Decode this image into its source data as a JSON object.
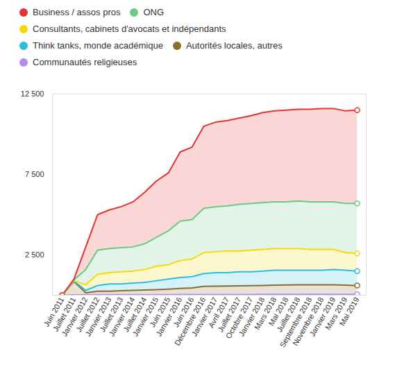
{
  "chart_data": {
    "type": "area",
    "stacked": true,
    "legend": "top-left",
    "grid": false,
    "categories": [
      "Juin 2011",
      "Juillet 2011",
      "Janvier 2012",
      "Juillet 2012",
      "Janvier 2013",
      "Juillet 2013",
      "Janvier 2014",
      "Juillet 2014",
      "Janvier 2015",
      "Juin 2015",
      "Janvier 2016",
      "Juin 2016",
      "Décembre 2016",
      "Janvier 2017",
      "Avril 2017",
      "Juillet 2017",
      "Octobre 2017",
      "Janvier 2018",
      "Mars 2018",
      "Mai 2018",
      "Juillet 2018",
      "Septembre 2018",
      "Novembre 2018",
      "Janvier 2019",
      "Mars 2019",
      "Mai 2019"
    ],
    "ylim": [
      0,
      12500
    ],
    "yticks": [
      {
        "value": 2500,
        "label": "2 500"
      },
      {
        "value": 7500,
        "label": "7 500"
      },
      {
        "value": 12500,
        "label": "12 500"
      }
    ],
    "series": [
      {
        "name": "Communautés religieuses",
        "color": "#b38cf0",
        "values": [
          0,
          20,
          30,
          30,
          30,
          30,
          30,
          30,
          30,
          30,
          40,
          40,
          40,
          40,
          40,
          40,
          40,
          50,
          50,
          50,
          50,
          50,
          50,
          50,
          50,
          50
        ]
      },
      {
        "name": "Autorités locales, autres",
        "color": "#8b6b2e",
        "values": [
          0,
          830,
          120,
          220,
          220,
          250,
          270,
          290,
          320,
          350,
          380,
          410,
          510,
          520,
          530,
          540,
          550,
          550,
          570,
          590,
          600,
          600,
          600,
          600,
          570,
          550
        ]
      },
      {
        "name": "Think tanks, monde académique",
        "color": "#2bbde0",
        "values": [
          0,
          20,
          150,
          350,
          450,
          420,
          450,
          480,
          550,
          620,
          680,
          700,
          800,
          840,
          830,
          870,
          860,
          900,
          930,
          910,
          900,
          900,
          900,
          950,
          930,
          900
        ]
      },
      {
        "name": "Consultants, cabinets d'avocats et indépendants",
        "color": "#f5d90a",
        "values": [
          0,
          30,
          350,
          700,
          700,
          750,
          750,
          800,
          900,
          900,
          1050,
          1100,
          1300,
          1300,
          1350,
          1300,
          1350,
          1350,
          1350,
          1350,
          1350,
          1300,
          1300,
          1250,
          1100,
          1100
        ]
      },
      {
        "name": "ONG",
        "color": "#6cc885",
        "values": [
          0,
          50,
          950,
          1500,
          1500,
          1500,
          1500,
          1600,
          1800,
          2100,
          2450,
          2450,
          2750,
          2800,
          2800,
          2900,
          2900,
          2900,
          2900,
          2900,
          2950,
          2950,
          2950,
          2950,
          3050,
          3100
        ]
      },
      {
        "name": "Business / assos pros",
        "color": "#e63232",
        "values": [
          0,
          50,
          1400,
          2200,
          2400,
          2550,
          2800,
          3200,
          3500,
          3600,
          4300,
          4500,
          5100,
          5250,
          5300,
          5350,
          5450,
          5600,
          5650,
          5700,
          5700,
          5750,
          5800,
          5800,
          5750,
          5800
        ]
      }
    ]
  }
}
